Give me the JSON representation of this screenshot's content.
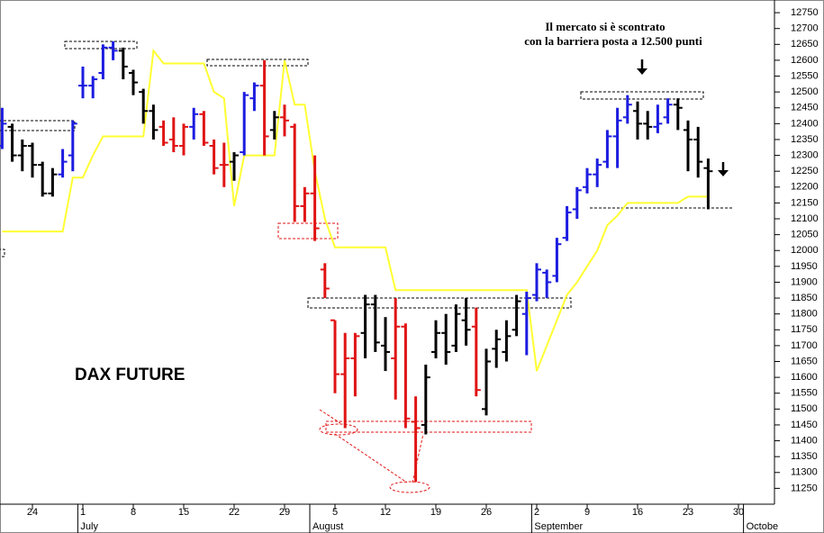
{
  "chart_data": {
    "type": "ohlc",
    "label": "DAX FUTURE",
    "annotations": [
      "Il mercato si è scontrato",
      "con la barriera posta a 12.500 punti"
    ],
    "categories": [
      null,
      null,
      null,
      "24",
      null,
      null,
      null,
      null,
      "1",
      null,
      null,
      null,
      null,
      "8",
      null,
      null,
      null,
      null,
      "15",
      null,
      null,
      null,
      null,
      "22",
      null,
      null,
      null,
      null,
      "29",
      null,
      null,
      null,
      null,
      "5",
      null,
      null,
      null,
      null,
      "12",
      null,
      null,
      null,
      null,
      "19",
      null,
      null,
      null,
      null,
      "26",
      null,
      null,
      null,
      null,
      "2",
      null,
      null,
      null,
      null,
      "9",
      null,
      null,
      null,
      null,
      "16",
      null,
      null,
      null,
      null,
      "23",
      null,
      null,
      null,
      null,
      "30",
      null,
      null
    ],
    "month_labels": [
      {
        "label": "July",
        "index": 8
      },
      {
        "label": "August",
        "index": 31
      },
      {
        "label": "September",
        "index": 53
      },
      {
        "label": "Octobe",
        "index": 74
      }
    ],
    "open": [
      12330,
      12390,
      12300,
      12330,
      12270,
      12180,
      12240,
      12300,
      12520,
      12520,
      12560,
      12640,
      12630,
      12560,
      12500,
      12440,
      12390,
      12350,
      12330,
      12390,
      12430,
      12330,
      12270,
      12280,
      12310,
      12480,
      12520,
      12380,
      12420,
      12390,
      12140,
      12180,
      11940,
      11780,
      11610,
      11660,
      11740,
      11830,
      11700,
      11660,
      11760,
      11460,
      11450,
      11680,
      11740,
      11700,
      11780,
      11760,
      11500,
      11690,
      11680,
      11750,
      11800,
      11860,
      11930,
      11920,
      12040,
      12130,
      12200,
      12240,
      12280,
      12360,
      12420,
      12440,
      12400,
      12390,
      12420,
      12460,
      12380,
      12350,
      12260,
      null,
      null,
      null,
      null,
      null
    ],
    "high": [
      12450,
      12400,
      12350,
      12340,
      12280,
      12260,
      12320,
      12410,
      12580,
      12550,
      12650,
      12660,
      12640,
      12570,
      12510,
      12460,
      12410,
      12420,
      12400,
      12450,
      12440,
      12350,
      12340,
      12310,
      12500,
      12530,
      12600,
      12440,
      12460,
      12400,
      12200,
      12300,
      11960,
      11780,
      11740,
      11740,
      11860,
      11860,
      11790,
      11850,
      11770,
      11540,
      11640,
      11780,
      11800,
      11830,
      11850,
      11820,
      11690,
      11750,
      11780,
      11860,
      11870,
      11960,
      11940,
      12040,
      12140,
      12200,
      12260,
      12290,
      12380,
      12450,
      12490,
      12470,
      12440,
      12460,
      12480,
      12480,
      12410,
      12390,
      12290,
      null,
      null,
      null,
      null,
      null
    ],
    "low": [
      12320,
      12280,
      12250,
      12230,
      12170,
      12170,
      12230,
      12250,
      12480,
      12480,
      12540,
      12600,
      12540,
      12490,
      12400,
      12350,
      12330,
      12310,
      12300,
      12350,
      12330,
      12240,
      12200,
      12220,
      12300,
      12440,
      12300,
      12350,
      12360,
      12090,
      12090,
      12030,
      11850,
      11550,
      11440,
      11540,
      11660,
      11680,
      11620,
      11530,
      11440,
      11270,
      11420,
      11660,
      11640,
      11680,
      11700,
      11540,
      11480,
      11630,
      11650,
      11730,
      11670,
      11840,
      11850,
      11900,
      12030,
      12100,
      12180,
      12200,
      12260,
      12260,
      12400,
      12350,
      12350,
      12370,
      12400,
      12380,
      12250,
      12230,
      12130,
      null,
      null,
      null,
      null,
      null
    ],
    "close": [
      12400,
      12300,
      12330,
      12270,
      12180,
      12240,
      12280,
      12400,
      12520,
      12540,
      12640,
      12630,
      12580,
      12530,
      12440,
      12380,
      12340,
      12330,
      12390,
      12430,
      12340,
      12260,
      12270,
      12300,
      12490,
      12520,
      12360,
      12420,
      12410,
      12140,
      12180,
      12070,
      11880,
      11610,
      11660,
      11730,
      11830,
      11710,
      11680,
      11760,
      11470,
      11440,
      11600,
      11740,
      11680,
      11800,
      11750,
      11560,
      11650,
      11720,
      11730,
      11840,
      11850,
      11940,
      11900,
      12020,
      12120,
      12190,
      12240,
      12270,
      12360,
      12410,
      12460,
      12400,
      12390,
      12400,
      12460,
      12450,
      12350,
      12280,
      12250,
      null,
      null,
      null,
      null,
      null
    ],
    "bar_colors": [
      "#1c1ce0",
      "#000000",
      "#000000",
      "#000000",
      "#000000",
      "#000000",
      "#1c1ce0",
      "#1c1ce0",
      "#1c1ce0",
      "#1c1ce0",
      "#1c1ce0",
      "#1c1ce0",
      "#000000",
      "#000000",
      "#000000",
      "#000000",
      "#e01414",
      "#e01414",
      "#e01414",
      "#1c1ce0",
      "#e01414",
      "#e01414",
      "#e01414",
      "#000000",
      "#1c1ce0",
      "#1c1ce0",
      "#e01414",
      "#000000",
      "#e01414",
      "#e01414",
      "#e01414",
      "#e01414",
      "#e01414",
      "#e01414",
      "#e01414",
      "#e01414",
      "#000000",
      "#000000",
      "#000000",
      "#e01414",
      "#e01414",
      "#e01414",
      "#000000",
      "#000000",
      "#000000",
      "#000000",
      "#000000",
      "#e01414",
      "#000000",
      "#000000",
      "#000000",
      "#000000",
      "#1c1ce0",
      "#1c1ce0",
      "#1c1ce0",
      "#1c1ce0",
      "#1c1ce0",
      "#1c1ce0",
      "#1c1ce0",
      "#1c1ce0",
      "#1c1ce0",
      "#1c1ce0",
      "#1c1ce0",
      "#000000",
      "#000000",
      "#1c1ce0",
      "#1c1ce0",
      "#000000",
      "#000000",
      "#000000",
      "#000000",
      null,
      null,
      null,
      null,
      null
    ],
    "overlay": {
      "color": "#ffff33",
      "values": [
        12060,
        12060,
        12060,
        12060,
        12060,
        12060,
        12060,
        12230,
        12230,
        12300,
        12360,
        12360,
        12360,
        12360,
        12360,
        12630,
        12590,
        12590,
        12590,
        12590,
        12590,
        12500,
        12480,
        12140,
        12300,
        12300,
        12300,
        12300,
        12600,
        12460,
        12460,
        12250,
        12100,
        12010,
        12010,
        12010,
        12010,
        12010,
        12010,
        11875,
        11875,
        11875,
        11875,
        11875,
        11875,
        11875,
        11875,
        11875,
        11875,
        11875,
        11875,
        11875,
        11875,
        11620,
        11700,
        11780,
        11860,
        11900,
        11950,
        12000,
        12080,
        12110,
        12150,
        12150,
        12150,
        12150,
        12150,
        12150,
        12170,
        12170,
        12170,
        null,
        null,
        null,
        null,
        null
      ]
    },
    "ylim": [
      11200,
      12790
    ],
    "yticks": [
      11250,
      11300,
      11350,
      11400,
      11450,
      11500,
      11550,
      11600,
      11650,
      11700,
      11750,
      11800,
      11850,
      11900,
      11950,
      12000,
      12050,
      12100,
      12150,
      12200,
      12250,
      12300,
      12350,
      12400,
      12450,
      12500,
      12550,
      12600,
      12650,
      12700,
      12750
    ]
  }
}
